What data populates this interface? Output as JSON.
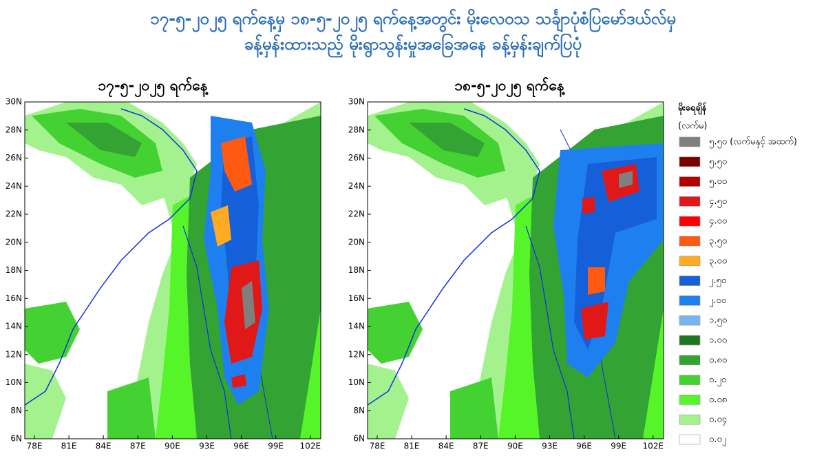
{
  "header": {
    "title_line1": "၁၇-၅-၂၀၂၅ ရက်နေ့မှ ၁၈-၅-၂၀၂၅ ရက်နေ့အတွင်း မိုးလေဝသ သင်္ချာပုံစံပြမော်ဒယ်လ်မှ",
    "title_line2": "ခန့်မှန်းထားသည့် မိုးရွာသွန်းမှုအခြေအနေ ခန့်မှန်းချက်ပြပုံ"
  },
  "maps": [
    {
      "title": "၁၇-၅-၂၀၂၅ ရက်နေ့"
    },
    {
      "title": "၁၈-၅-၂၀၂၅ ရက်နေ့"
    }
  ],
  "lat_labels": [
    "30N",
    "28N",
    "26N",
    "24N",
    "22N",
    "20N",
    "18N",
    "16N",
    "14N",
    "12N",
    "10N",
    "8N",
    "6N"
  ],
  "lon_labels": [
    "78E",
    "81E",
    "84E",
    "87E",
    "90E",
    "93E",
    "96E",
    "99E",
    "102E"
  ],
  "legend": {
    "title": "မိုးရေချိန်",
    "unit": "(လက်မ)",
    "items": [
      {
        "label": "၅.၅၀ (လက်မနှင့် အထက်)",
        "color": "#7f7f7f"
      },
      {
        "label": "၅.၅၀",
        "color": "#7a0000"
      },
      {
        "label": "၅.၀၀",
        "color": "#b00000"
      },
      {
        "label": "၄.၅၀",
        "color": "#e01818"
      },
      {
        "label": "၄.၀၀",
        "color": "#ff0000"
      },
      {
        "label": "၃.၅၀",
        "color": "#ff5a12"
      },
      {
        "label": "၃.၀၀",
        "color": "#ffaa22"
      },
      {
        "label": "၂.၅၀",
        "color": "#1560d8"
      },
      {
        "label": "၂.၀၀",
        "color": "#1e80f0"
      },
      {
        "label": "၁.၅၀",
        "color": "#78b4f0"
      },
      {
        "label": "၁.၀၀",
        "color": "#1f741f"
      },
      {
        "label": "၀.၈၀",
        "color": "#33a333"
      },
      {
        "label": "၀.၂၀",
        "color": "#44d232"
      },
      {
        "label": "၀.၀၈",
        "color": "#55f52a"
      },
      {
        "label": "၀.၀၄",
        "color": "#a4f28e"
      },
      {
        "label": "၀.၀၂",
        "color": "#ffffff"
      }
    ]
  }
}
